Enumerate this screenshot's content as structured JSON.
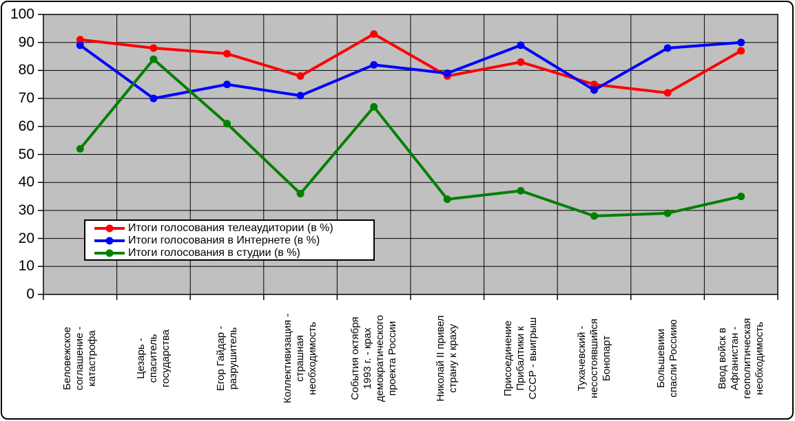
{
  "chart_data": {
    "type": "line",
    "title": "",
    "xlabel": "",
    "ylabel": "",
    "ylim": [
      0,
      100
    ],
    "ytick_step": 10,
    "yticks": [
      0,
      10,
      20,
      30,
      40,
      50,
      60,
      70,
      80,
      90,
      100
    ],
    "grid": true,
    "plot_bg_color": "#c0c0c0",
    "gridline_color": "#000000",
    "legend_position": "inside-left-middle",
    "categories": [
      {
        "label": "Беловежское соглашение - катастрофа",
        "lines": [
          "Беловежское",
          "соглашение -",
          "катастрофа"
        ]
      },
      {
        "label": "Цезарь - спаситель государства",
        "lines": [
          "Цезарь -",
          "спаситель",
          "государства"
        ]
      },
      {
        "label": "Егор Гайдар - разрушитель",
        "lines": [
          "Егор Гайдар -",
          "разрушитель"
        ]
      },
      {
        "label": "Коллективизация - страшная необходимость",
        "lines": [
          "Коллективизация -",
          "страшная",
          "необходимость"
        ]
      },
      {
        "label": "События октября 1993 г. - крах демократического проекта России",
        "lines": [
          "События октября",
          "1993 г. - крах",
          "демократического",
          "проекта России"
        ]
      },
      {
        "label": "Николай II привел страну к краху",
        "lines": [
          "Николай II привел",
          "страну к краху"
        ]
      },
      {
        "label": "Присоединение Прибалтики к СССР - выигрыш",
        "lines": [
          "Присоединение",
          "Прибалтики к",
          "СССР - выигрыш"
        ]
      },
      {
        "label": "Тухачевский - несостоявшийся Бонопарт",
        "lines": [
          "Тухачевский -",
          "несостоявшийся",
          "Бонопарт"
        ]
      },
      {
        "label": "Большевики спасли Россиию",
        "lines": [
          "Большевики",
          "спасли Россиию"
        ]
      },
      {
        "label": "Ввод войск в Афганистан - геополитическая необходимость",
        "lines": [
          "Ввод войск в",
          "Афганистан -",
          "геополитическая",
          "необходимость"
        ]
      }
    ],
    "series": [
      {
        "name": "Итоги голосования телеаудитории (в %)",
        "color": "#ff0000",
        "values": [
          91,
          88,
          86,
          78,
          93,
          78,
          83,
          75,
          72,
          87
        ]
      },
      {
        "name": "Итоги голосования в Интернете (в %)",
        "color": "#0000ff",
        "values": [
          89,
          70,
          75,
          71,
          82,
          79,
          89,
          73,
          88,
          90
        ]
      },
      {
        "name": "Итоги голосования в студии (в %)",
        "color": "#008000",
        "values": [
          52,
          84,
          61,
          36,
          67,
          34,
          37,
          28,
          29,
          35
        ]
      }
    ]
  }
}
